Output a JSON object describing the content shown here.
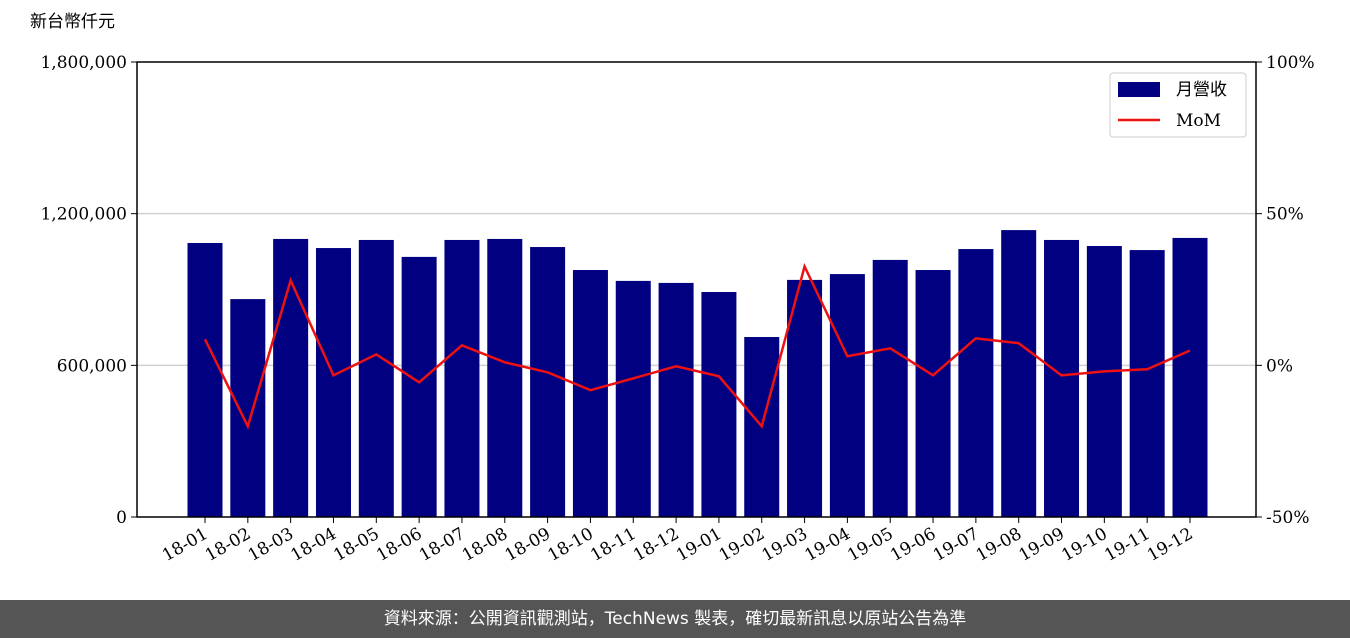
{
  "chart_data": {
    "type": "bar-line",
    "y_label": "新台幣仟元",
    "categories": [
      "18-01",
      "18-02",
      "18-03",
      "18-04",
      "18-05",
      "18-06",
      "18-07",
      "18-08",
      "18-09",
      "18-10",
      "18-11",
      "18-12",
      "19-01",
      "19-02",
      "19-03",
      "19-04",
      "19-05",
      "19-06",
      "19-07",
      "19-08",
      "19-09",
      "19-10",
      "19-11",
      "19-12"
    ],
    "series": [
      {
        "name": "月營收",
        "type": "bar",
        "color": "#000080",
        "values": [
          1084000,
          862000,
          1100000,
          1064000,
          1096000,
          1029000,
          1096000,
          1100000,
          1068000,
          977000,
          934000,
          926000,
          890000,
          712000,
          938000,
          961000,
          1017000,
          977000,
          1060000,
          1135000,
          1096000,
          1072000,
          1056000,
          1104000
        ]
      },
      {
        "name": "MoM",
        "type": "line",
        "color": "#ee1111",
        "axis": "y2",
        "values": [
          8.6,
          -20.1,
          28,
          -3.3,
          3.6,
          -5.6,
          6.6,
          1,
          -2.3,
          -8.2,
          -4.3,
          -0.3,
          -3.6,
          -20.1,
          32.6,
          3,
          5.6,
          -3.3,
          8.9,
          7.3,
          -3.3,
          -2,
          -1.3,
          4.9
        ]
      }
    ],
    "ylim": [
      0,
      1800000
    ],
    "yticks": [
      0,
      {
        "value": 600000,
        "label": "600,000"
      },
      {
        "value": 1200000,
        "label": "1,200,000"
      },
      {
        "value": 1800000,
        "label": "1,800,000"
      }
    ],
    "y2lim": [
      -50,
      100
    ],
    "y2ticks": [
      {
        "value": -50,
        "label": "-50%"
      },
      {
        "value": 0,
        "label": "0%"
      },
      {
        "value": 50,
        "label": "50%"
      },
      {
        "value": 100,
        "label": "100%"
      }
    ],
    "grid": true,
    "legend": "upper right",
    "footer": "資料來源：公開資訊觀測站，TechNews 製表，確切最新訊息以原站公告為準"
  }
}
